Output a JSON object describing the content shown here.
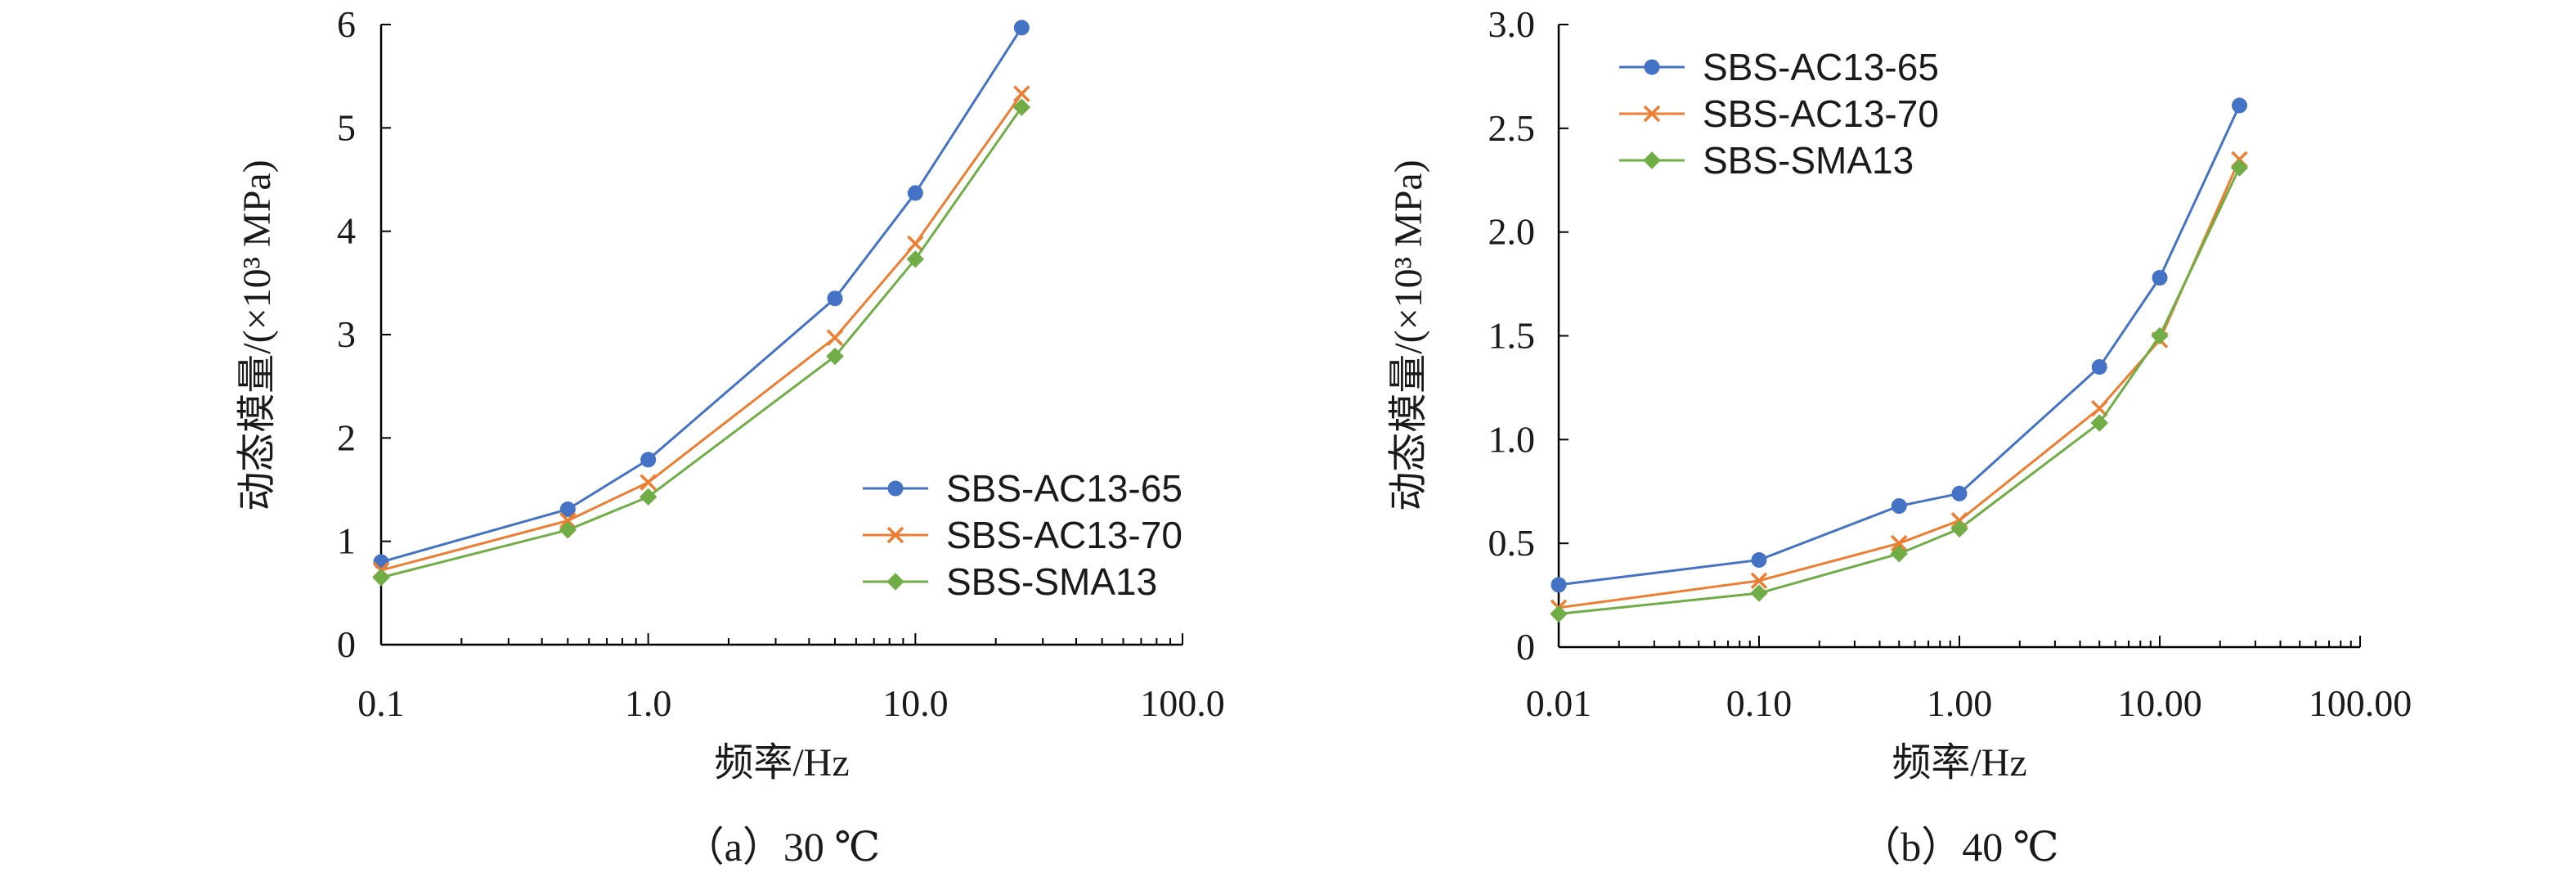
{
  "figure": {
    "background": "#ffffff"
  },
  "chart_data": [
    {
      "type": "line",
      "caption": "（a）30 ℃",
      "title": "",
      "xlabel": "频率/Hz",
      "ylabel": "动态模量/(×10³ MPa)",
      "xscale": "log",
      "xlim": [
        0.1,
        100.0
      ],
      "ylim": [
        0,
        6
      ],
      "xticks": [
        0.1,
        1.0,
        10.0,
        100.0
      ],
      "xtick_labels": [
        "0.1",
        "1.0",
        "10.0",
        "100.0"
      ],
      "yticks": [
        0,
        1,
        2,
        3,
        4,
        5,
        6
      ],
      "ytick_labels": [
        "0",
        "1",
        "2",
        "3",
        "4",
        "5",
        "6"
      ],
      "grid": false,
      "legend_position": "lower-right",
      "x": [
        0.1,
        0.5,
        1,
        5,
        10,
        25
      ],
      "series": [
        {
          "name": "SBS-AC13-65",
          "color": "#4472C4",
          "marker": "circle",
          "values": [
            0.8,
            1.31,
            1.79,
            3.35,
            4.37,
            5.97
          ]
        },
        {
          "name": "SBS-AC13-70",
          "color": "#ED7D31",
          "marker": "x",
          "values": [
            0.72,
            1.2,
            1.57,
            2.97,
            3.88,
            5.33
          ]
        },
        {
          "name": "SBS-SMA13",
          "color": "#70AD47",
          "marker": "diamond",
          "values": [
            0.65,
            1.11,
            1.43,
            2.79,
            3.73,
            5.2
          ]
        }
      ]
    },
    {
      "type": "line",
      "caption": "（b）40 ℃",
      "title": "",
      "xlabel": "频率/Hz",
      "ylabel": "动态模量/(×10³ MPa)",
      "xscale": "log",
      "xlim": [
        0.01,
        100.0
      ],
      "ylim": [
        0,
        3.0
      ],
      "xticks": [
        0.01,
        0.1,
        1.0,
        10.0,
        100.0
      ],
      "xtick_labels": [
        "0.01",
        "0.10",
        "1.00",
        "10.00",
        "100.00"
      ],
      "yticks": [
        0,
        0.5,
        1.0,
        1.5,
        2.0,
        2.5,
        3.0
      ],
      "ytick_labels": [
        "0",
        "0.5",
        "1.0",
        "1.5",
        "2.0",
        "2.5",
        "3.0"
      ],
      "grid": false,
      "legend_position": "top-left",
      "x": [
        0.01,
        0.1,
        0.5,
        1,
        5,
        10,
        25
      ],
      "series": [
        {
          "name": "SBS-AC13-65",
          "color": "#4472C4",
          "marker": "circle",
          "values": [
            0.3,
            0.42,
            0.68,
            0.74,
            1.35,
            1.78,
            2.61
          ]
        },
        {
          "name": "SBS-AC13-70",
          "color": "#ED7D31",
          "marker": "x",
          "values": [
            0.19,
            0.32,
            0.5,
            0.61,
            1.15,
            1.48,
            2.35
          ]
        },
        {
          "name": "SBS-SMA13",
          "color": "#70AD47",
          "marker": "diamond",
          "values": [
            0.16,
            0.26,
            0.45,
            0.57,
            1.08,
            1.5,
            2.31
          ]
        }
      ]
    }
  ]
}
